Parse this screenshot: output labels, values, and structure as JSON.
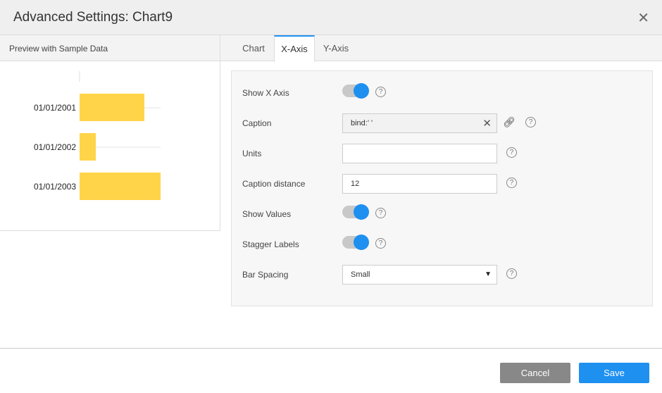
{
  "dialog": {
    "title": "Advanced Settings: Chart9",
    "close_icon": "close-icon"
  },
  "preview": {
    "title": "Preview with Sample Data"
  },
  "chart_data": {
    "type": "bar",
    "orientation": "horizontal",
    "categories": [
      "01/01/2001",
      "01/01/2002",
      "01/01/2003"
    ],
    "values": [
      80,
      20,
      100
    ],
    "bar_color": "#ffd23f",
    "xlim": [
      0,
      100
    ],
    "grid": true
  },
  "tabs": [
    {
      "label": "Chart"
    },
    {
      "label": "X-Axis",
      "active": true
    },
    {
      "label": "Y-Axis"
    }
  ],
  "form": {
    "show_x_axis": {
      "label": "Show X Axis",
      "value": true
    },
    "caption": {
      "label": "Caption",
      "value": "bind:' '"
    },
    "units": {
      "label": "Units",
      "value": ""
    },
    "caption_distance": {
      "label": "Caption distance",
      "value": "12"
    },
    "show_values": {
      "label": "Show Values",
      "value": true
    },
    "stagger_labels": {
      "label": "Stagger Labels",
      "value": true
    },
    "bar_spacing": {
      "label": "Bar Spacing",
      "value": "Small"
    },
    "help_glyph": "?"
  },
  "footer": {
    "cancel": "Cancel",
    "save": "Save"
  },
  "colors": {
    "accent": "#1e90f0",
    "cancel": "#888888",
    "save": "#1e90f0"
  }
}
